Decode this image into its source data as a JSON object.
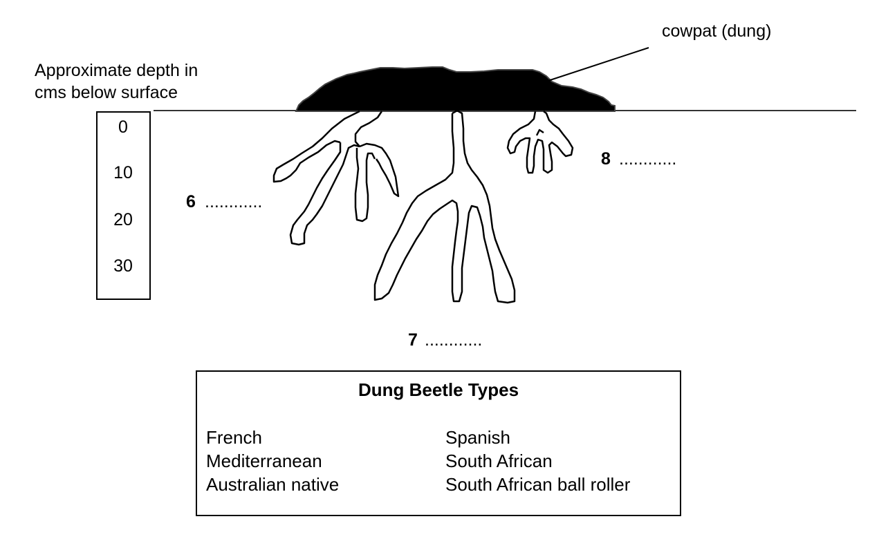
{
  "depth_axis": {
    "title_lines": [
      "Approximate depth in",
      "cms below surface"
    ],
    "ticks": [
      "0",
      "10",
      "20",
      "30"
    ]
  },
  "cowpat_label": "cowpat (dung)",
  "tunnel_labels": [
    {
      "number": "6",
      "blank": "............"
    },
    {
      "number": "7",
      "blank": "............"
    },
    {
      "number": "8",
      "blank": "............"
    }
  ],
  "legend": {
    "title": "Dung Beetle Types",
    "left_column": [
      "French",
      "Mediterranean",
      "Australian native"
    ],
    "right_column": [
      "Spanish",
      "South African",
      "South African ball roller"
    ]
  }
}
